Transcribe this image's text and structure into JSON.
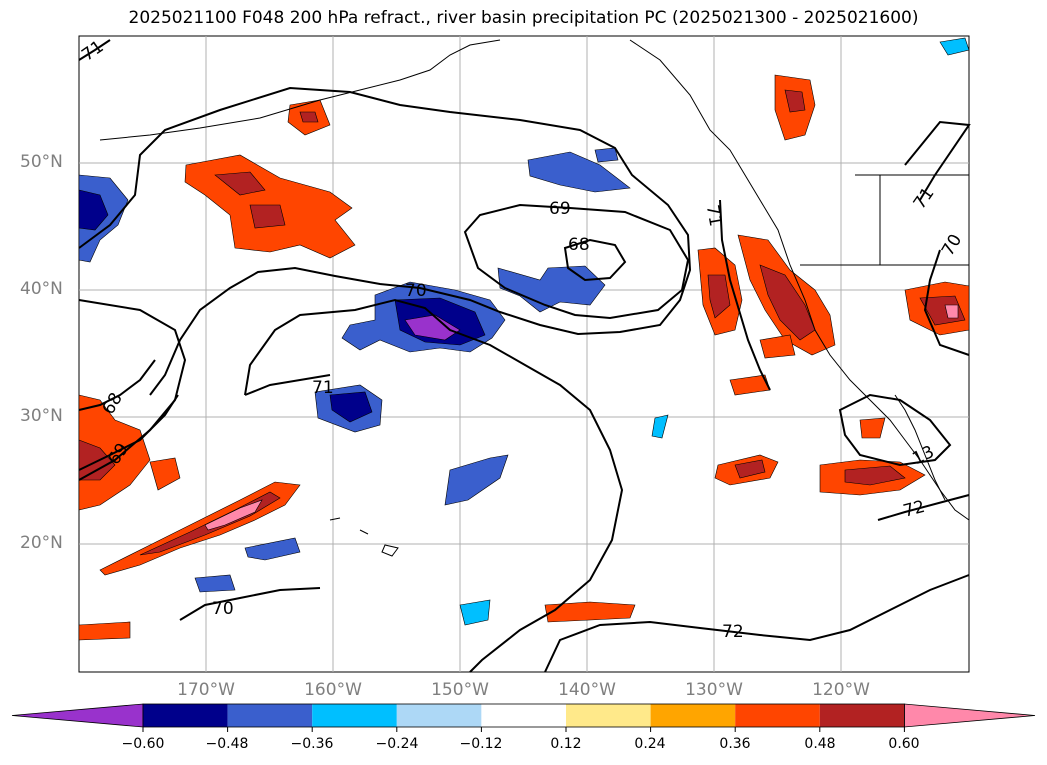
{
  "title": "2025021100 F048 200 hPa refract., river basin precipitation PC (2025021300 - 2025021600)",
  "lat_labels": [
    "50°N",
    "40°N",
    "30°N",
    "20°N"
  ],
  "lon_labels": [
    "170°W",
    "160°W",
    "150°W",
    "140°W",
    "130°W",
    "120°W"
  ],
  "contour_labels": [
    "71",
    "69",
    "68",
    "70",
    "71",
    "71",
    "71",
    "70",
    "68",
    "69",
    "13",
    "72",
    "72",
    "70"
  ],
  "colorbar": {
    "ticks": [
      "−0.60",
      "−0.48",
      "−0.36",
      "−0.24",
      "−0.12",
      "0.12",
      "0.24",
      "0.36",
      "0.48",
      "0.60"
    ],
    "colors": [
      "#9932cc",
      "#00008b",
      "#3a5fcd",
      "#00bfff",
      "#add8f6",
      "#ffffff",
      "#ffe98a",
      "#ffa500",
      "#ff4500",
      "#b22222",
      "#ff88aa"
    ]
  },
  "map": {
    "lat_range": [
      "10°N",
      "60°N"
    ],
    "lon_range": [
      "180°",
      "110°W"
    ],
    "gridlines": true,
    "coastlines": true
  }
}
